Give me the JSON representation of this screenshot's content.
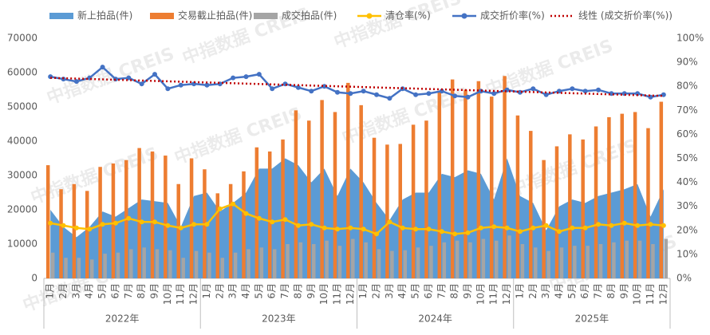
{
  "chart_data": {
    "type": "combo",
    "watermark": "中指数据 CREIS",
    "categories": [
      "1月",
      "2月",
      "3月",
      "4月",
      "5月",
      "6月",
      "7月",
      "8月",
      "9月",
      "10月",
      "11月",
      "12月",
      "1月",
      "2月",
      "3月",
      "4月",
      "5月",
      "6月",
      "7月",
      "8月",
      "9月",
      "10月",
      "11月",
      "12月",
      "1月",
      "2月",
      "3月",
      "4月",
      "5月",
      "6月",
      "7月",
      "8月",
      "9月",
      "10月",
      "11月",
      "12月",
      "1月",
      "2月",
      "3月",
      "4月",
      "5月",
      "6月",
      "7月",
      "8月",
      "9月",
      "10月",
      "11月",
      "12月"
    ],
    "years": [
      "2022年",
      "2023年",
      "2024年",
      "2025年"
    ],
    "ylim": [
      0,
      70000
    ],
    "yticks": [
      0,
      10000,
      20000,
      30000,
      40000,
      50000,
      60000,
      70000
    ],
    "y2lim": [
      0,
      100
    ],
    "y2ticks": [
      {
        "value": 0,
        "label": "0%"
      },
      {
        "value": 10,
        "label": "10%"
      },
      {
        "value": 20,
        "label": "20%"
      },
      {
        "value": 30,
        "label": "30%"
      },
      {
        "value": 40,
        "label": "40%"
      },
      {
        "value": 50,
        "label": "50%"
      },
      {
        "value": 60,
        "label": "60%"
      },
      {
        "value": 70,
        "label": "70%"
      },
      {
        "value": 80,
        "label": "80%"
      },
      {
        "value": 90,
        "label": "90%"
      },
      {
        "value": 100,
        "label": "100%"
      }
    ],
    "grid": false,
    "series": [
      {
        "name": "新上拍品(件)",
        "kind": "area",
        "color": "#5b9bd5",
        "values": [
          20000,
          15000,
          12000,
          15000,
          19500,
          18000,
          20500,
          23000,
          22500,
          22000,
          15000,
          24000,
          25000,
          19500,
          22000,
          25000,
          32000,
          32000,
          35000,
          33000,
          28000,
          32000,
          24000,
          32000,
          28000,
          22000,
          17000,
          23000,
          25000,
          25000,
          30500,
          29500,
          31500,
          30500,
          23000,
          35000,
          24000,
          22000,
          14000,
          21000,
          23000,
          22000,
          24000,
          25000,
          26000,
          27500,
          18000,
          26000
        ]
      },
      {
        "name": "交易截止拍品(件)",
        "kind": "bar",
        "color": "#ed7d31",
        "values": [
          33000,
          26000,
          27500,
          25500,
          32500,
          33500,
          34500,
          38000,
          37000,
          35800,
          27500,
          35000,
          31800,
          24800,
          27500,
          31200,
          38200,
          37000,
          40500,
          49000,
          46000,
          52000,
          48500,
          57000,
          50500,
          41000,
          39000,
          39200,
          44800,
          46000,
          54500,
          58000,
          55000,
          57500,
          53000,
          59000,
          47500,
          43000,
          34500,
          38500,
          42000,
          40500,
          44300,
          47000,
          48000,
          48500,
          43800,
          51500
        ]
      },
      {
        "name": "成交拍品(件)",
        "kind": "bar",
        "color": "#a5a5a5",
        "values": [
          7500,
          6000,
          6000,
          5500,
          7200,
          7500,
          8500,
          9000,
          8500,
          8200,
          6000,
          8000,
          7500,
          6000,
          7500,
          8500,
          9000,
          8500,
          10000,
          10500,
          10000,
          11000,
          9500,
          11500,
          10500,
          8500,
          8000,
          8200,
          9000,
          9500,
          10500,
          11000,
          10500,
          11500,
          11000,
          12500,
          10000,
          9000,
          8000,
          9000,
          9500,
          9500,
          10000,
          10500,
          11000,
          11000,
          10000,
          11500
        ]
      },
      {
        "name": "清仓率(%)",
        "kind": "line",
        "axis": "y2",
        "color": "#ffc000",
        "values": [
          23,
          22,
          21,
          20.5,
          22.5,
          23,
          25,
          23.5,
          23.5,
          22,
          21,
          22.5,
          22.5,
          29,
          31,
          27,
          25,
          23.5,
          24.5,
          22,
          22.5,
          21,
          20.5,
          21,
          20.5,
          18.5,
          23.5,
          21,
          20.5,
          20.5,
          19.5,
          18.5,
          19,
          21,
          21.5,
          21,
          19.5,
          21,
          22,
          19.5,
          21,
          21,
          22.5,
          22,
          23,
          22,
          22.5,
          22
        ]
      },
      {
        "name": "成交折价率(%)",
        "kind": "line",
        "axis": "y2",
        "color": "#4472c4",
        "values": [
          84,
          83,
          82,
          83.5,
          88,
          83,
          83.5,
          81,
          85,
          79,
          80.5,
          81,
          80.5,
          81,
          83.5,
          84,
          85,
          79,
          81,
          79.5,
          78,
          80,
          77.5,
          77,
          78,
          76.5,
          75,
          79,
          76.5,
          77,
          78,
          76,
          75.5,
          78,
          77,
          78.5,
          77.5,
          79,
          76.5,
          78,
          79,
          78,
          78.5,
          77,
          77,
          77,
          75.5,
          76.5
        ]
      },
      {
        "name": "线性 (成交折价率(%))",
        "kind": "trend",
        "axis": "y2",
        "color": "#c00000",
        "values": [
          83.52,
          83.36,
          83.2,
          83.04,
          82.88,
          82.72,
          82.56,
          82.4,
          82.24,
          82.08,
          81.92,
          81.76,
          81.6,
          81.44,
          81.28,
          81.12,
          80.96,
          80.8,
          80.64,
          80.48,
          80.32,
          80.16,
          80,
          79.84,
          79.68,
          79.52,
          79.36,
          79.2,
          79.04,
          78.88,
          78.72,
          78.56,
          78.4,
          78.24,
          78.08,
          77.92,
          77.76,
          77.6,
          77.44,
          77.28,
          77.12,
          76.96,
          76.8,
          76.64,
          76.48,
          76.32,
          76.16,
          76
        ]
      }
    ]
  }
}
